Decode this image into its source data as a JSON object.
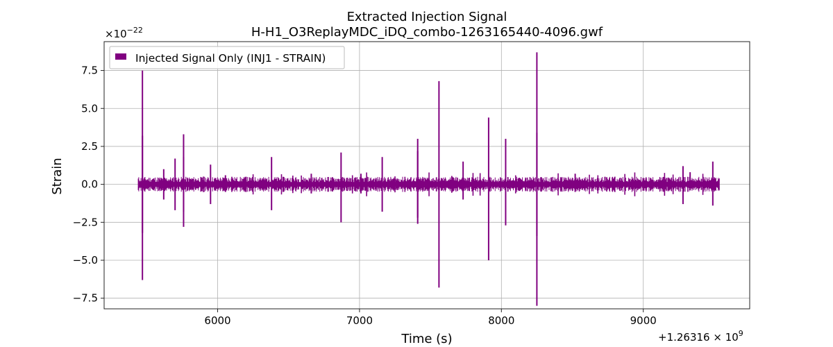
{
  "chart_data": {
    "type": "line",
    "title": "Extracted Injection Signal",
    "subtitle": "H-H1_O3ReplayMDC_iDQ_combo-1263165440-4096.gwf",
    "xlabel": "Time (s)",
    "ylabel": "Strain",
    "x_offset_label": "+1.26316 × 10",
    "x_offset_exponent": "9",
    "y_multiplier_label": "×10",
    "y_multiplier_exponent": "−22",
    "xlim": [
      5200,
      9750
    ],
    "ylim": [
      -8.2,
      9.4
    ],
    "x_ticks": [
      6000,
      7000,
      8000,
      9000
    ],
    "x_tick_labels": [
      "6000",
      "7000",
      "8000",
      "9000"
    ],
    "y_ticks": [
      7.5,
      5.0,
      2.5,
      0.0,
      -2.5,
      -5.0,
      -7.5
    ],
    "y_tick_labels": [
      "7.5",
      "5.0",
      "2.5",
      "0.0",
      "−2.5",
      "−5.0",
      "−7.5"
    ],
    "grid": true,
    "legend_position": "upper-left",
    "series_color": "#800080",
    "series": [
      {
        "name": "Injected Signal Only (INJ1 - STRAIN)",
        "x_range": [
          5440,
          9536
        ],
        "baseline_amplitude": 0.12,
        "spikes": [
          {
            "x": 5470,
            "max": 7.5,
            "min": -6.3
          },
          {
            "x": 5470,
            "max": 3.2,
            "min": -3.2
          },
          {
            "x": 5620,
            "max": 1.0,
            "min": -1.0
          },
          {
            "x": 5700,
            "max": 1.7,
            "min": -1.7
          },
          {
            "x": 5760,
            "max": 3.3,
            "min": -2.8
          },
          {
            "x": 5760,
            "max": 1.8,
            "min": -1.8
          },
          {
            "x": 5950,
            "max": 1.3,
            "min": -1.3
          },
          {
            "x": 6055,
            "max": 0.6,
            "min": -0.5
          },
          {
            "x": 6200,
            "max": 0.5,
            "min": -0.5
          },
          {
            "x": 6380,
            "max": 1.8,
            "min": -1.7
          },
          {
            "x": 6660,
            "max": 0.7,
            "min": -0.6
          },
          {
            "x": 6870,
            "max": 2.1,
            "min": -2.5
          },
          {
            "x": 7010,
            "max": 0.7,
            "min": -0.6
          },
          {
            "x": 7160,
            "max": 1.8,
            "min": -1.8
          },
          {
            "x": 7410,
            "max": 3.0,
            "min": -2.6
          },
          {
            "x": 7410,
            "max": 2.2,
            "min": -2.2
          },
          {
            "x": 7560,
            "max": 6.8,
            "min": -6.8
          },
          {
            "x": 7730,
            "max": 1.5,
            "min": -1.0
          },
          {
            "x": 7910,
            "max": 4.4,
            "min": -5.0
          },
          {
            "x": 8030,
            "max": 3.0,
            "min": -2.7
          },
          {
            "x": 8250,
            "max": 8.7,
            "min": -8.0
          },
          {
            "x": 8250,
            "max": 3.4,
            "min": -3.4
          },
          {
            "x": 8520,
            "max": 0.7,
            "min": -0.5
          },
          {
            "x": 8730,
            "max": 0.5,
            "min": -0.4
          },
          {
            "x": 9280,
            "max": 1.2,
            "min": -1.3
          },
          {
            "x": 9330,
            "max": 0.8,
            "min": -0.4
          },
          {
            "x": 9490,
            "max": 1.5,
            "min": -1.4
          }
        ],
        "small_spikes": [
          5900,
          6100,
          6250,
          6300,
          6450,
          6530,
          6590,
          6780,
          6950,
          7050,
          7250,
          7320,
          7490,
          7650,
          7690,
          7800,
          7850,
          8100,
          8170,
          8350,
          8400,
          8450,
          8620,
          8680,
          8800,
          8870,
          8940,
          9050,
          9150,
          9210,
          9420
        ]
      }
    ]
  }
}
